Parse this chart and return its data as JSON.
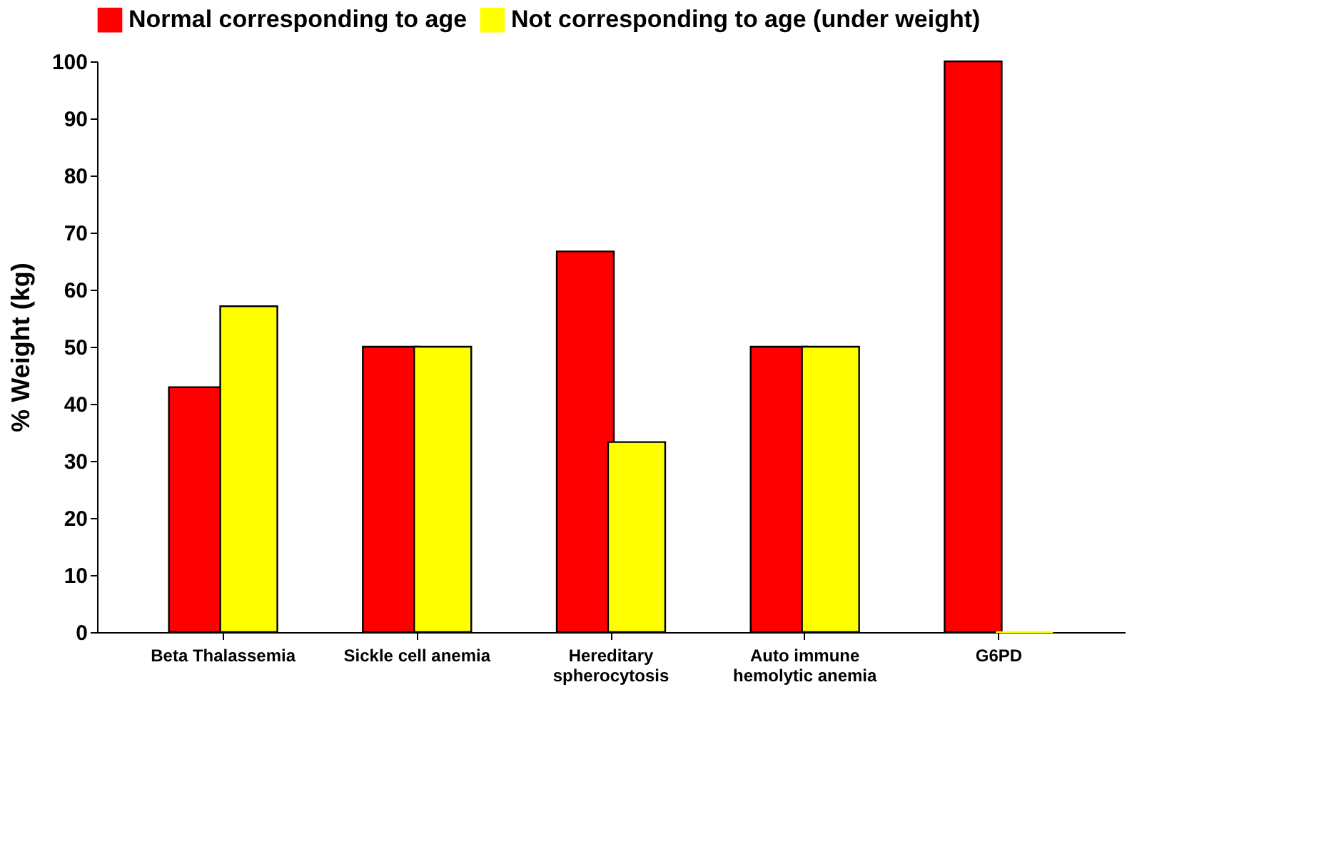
{
  "chart_data": {
    "type": "bar",
    "ylabel": "% Weight (kg)",
    "categories": [
      "Beta Thalassemia",
      "Sickle cell  anemia",
      "Hereditary spherocytosis",
      "Auto immune hemolytic anemia",
      "G6PD"
    ],
    "series": [
      {
        "name": "Normal corresponding to age",
        "color": "#ff0000",
        "values": [
          42.9,
          50,
          66.7,
          50,
          100
        ]
      },
      {
        "name": "Not corresponding to age (under weight)",
        "color": "#ffff00",
        "values": [
          57.1,
          50,
          33.3,
          50,
          0
        ]
      }
    ],
    "ylim": [
      0,
      100
    ],
    "yticks": [
      0,
      10,
      20,
      30,
      40,
      50,
      60,
      70,
      80,
      90,
      100
    ],
    "grid": false,
    "legend": "top"
  }
}
